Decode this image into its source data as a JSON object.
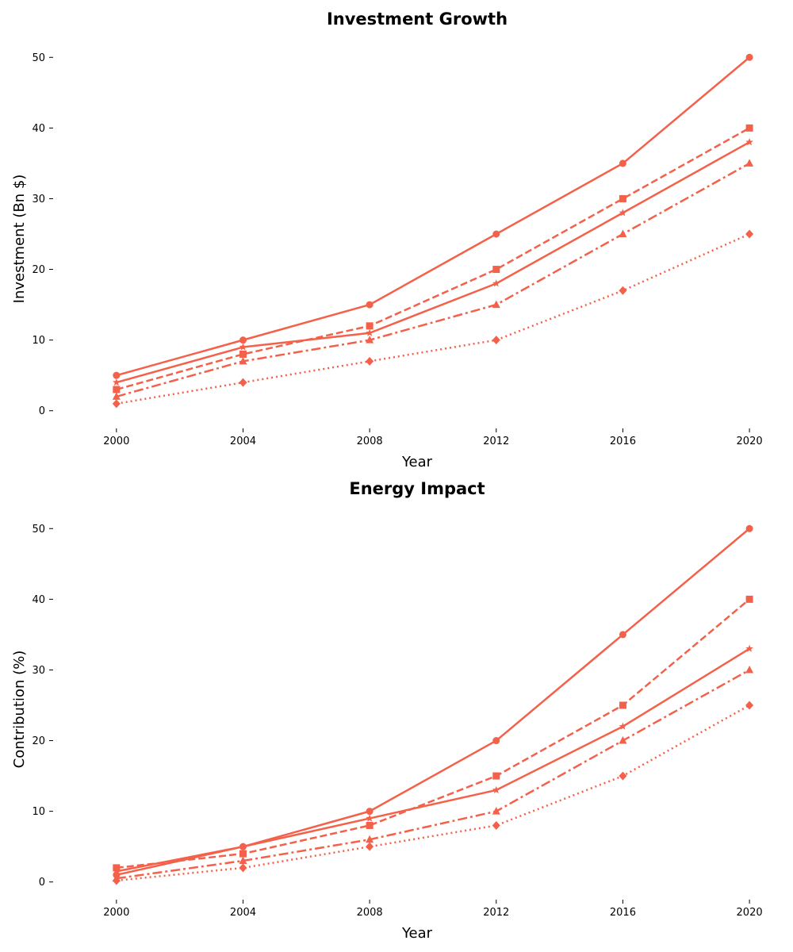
{
  "series_color": "#f4614a",
  "chart_data": [
    {
      "type": "line",
      "title": "Investment Growth",
      "xlabel": "Year",
      "ylabel": "Investment (Bn $)",
      "x": [
        2000,
        2004,
        2008,
        2012,
        2016,
        2020
      ],
      "xticks": [
        "2000",
        "2004",
        "2008",
        "2012",
        "2016",
        "2020"
      ],
      "yticks": [
        "0",
        "10",
        "20",
        "30",
        "40",
        "50"
      ],
      "xlim": [
        1998,
        2021
      ],
      "ylim": [
        -2.5,
        52.5
      ],
      "grid": false,
      "legend": "none",
      "series": [
        {
          "values": [
            5,
            10,
            15,
            25,
            35,
            50
          ],
          "marker": "circle",
          "linestyle": "solid"
        },
        {
          "values": [
            3,
            8,
            12,
            20,
            30,
            40
          ],
          "marker": "square",
          "linestyle": "dashed"
        },
        {
          "values": [
            2,
            7,
            10,
            15,
            25,
            35
          ],
          "marker": "triangle",
          "linestyle": "dashdot"
        },
        {
          "values": [
            1,
            4,
            7,
            10,
            17,
            25
          ],
          "marker": "diamond",
          "linestyle": "dotted"
        },
        {
          "values": [
            4,
            9,
            11,
            18,
            28,
            38
          ],
          "marker": "star",
          "linestyle": "solid"
        }
      ]
    },
    {
      "type": "line",
      "title": "Energy Impact",
      "xlabel": "Year",
      "ylabel": "Contribution (%)",
      "x": [
        2000,
        2004,
        2008,
        2012,
        2016,
        2020
      ],
      "xticks": [
        "2000",
        "2004",
        "2008",
        "2012",
        "2016",
        "2020"
      ],
      "yticks": [
        "0",
        "10",
        "20",
        "30",
        "40",
        "50"
      ],
      "xlim": [
        1998,
        2021
      ],
      "ylim": [
        -2.5,
        52.5
      ],
      "grid": false,
      "legend": "none",
      "series": [
        {
          "values": [
            1,
            5,
            10,
            20,
            35,
            50
          ],
          "marker": "circle",
          "linestyle": "solid"
        },
        {
          "values": [
            2,
            4,
            8,
            15,
            25,
            40
          ],
          "marker": "square",
          "linestyle": "dashed"
        },
        {
          "values": [
            0.5,
            3,
            6,
            10,
            20,
            30
          ],
          "marker": "triangle",
          "linestyle": "dashdot"
        },
        {
          "values": [
            0.2,
            2,
            5,
            8,
            15,
            25
          ],
          "marker": "diamond",
          "linestyle": "dotted"
        },
        {
          "values": [
            1.5,
            5,
            9,
            13,
            22,
            33
          ],
          "marker": "star",
          "linestyle": "solid"
        }
      ]
    }
  ]
}
